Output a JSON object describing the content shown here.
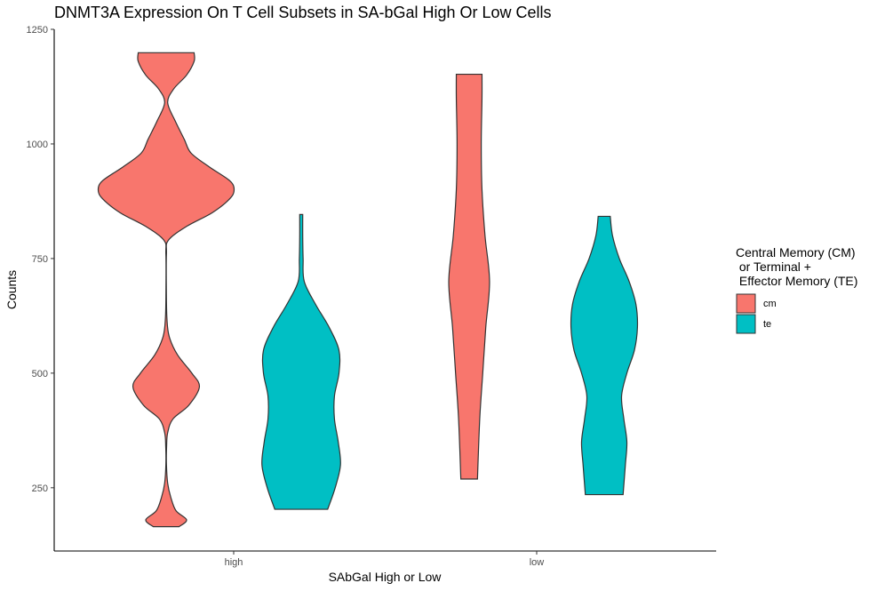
{
  "chart_data": {
    "type": "violin",
    "title": "DNMT3A Expression On T Cell Subsets in SA-bGal High Or Low Cells",
    "xlabel": "SAbGal High or Low",
    "ylabel": "Counts",
    "categories": [
      "high",
      "low"
    ],
    "ylim": [
      112,
      1250
    ],
    "yticks": [
      250,
      500,
      750,
      1000,
      1250
    ],
    "grid": false,
    "legend": {
      "title_lines": [
        "Central Memory (CM)",
        " or Terminal +",
        " Effector Memory (TE)"
      ],
      "placement": "right",
      "entries": [
        {
          "key": "cm",
          "label": "cm",
          "color": "#F8766D"
        },
        {
          "key": "te",
          "label": "te",
          "color": "#00BFC4"
        }
      ]
    },
    "series": [
      {
        "group": "cm",
        "category": "high",
        "color": "#F8766D",
        "profile": [
          [
            165,
            0.17
          ],
          [
            180,
            0.27
          ],
          [
            200,
            0.13
          ],
          [
            230,
            0.06
          ],
          [
            260,
            0.02
          ],
          [
            300,
            0.004
          ],
          [
            340,
            0.006
          ],
          [
            370,
            0.02
          ],
          [
            400,
            0.09
          ],
          [
            430,
            0.3
          ],
          [
            470,
            0.44
          ],
          [
            500,
            0.34
          ],
          [
            540,
            0.15
          ],
          [
            580,
            0.04
          ],
          [
            620,
            0.01
          ],
          [
            680,
            0.003
          ],
          [
            760,
            0.004
          ],
          [
            790,
            0.03
          ],
          [
            820,
            0.27
          ],
          [
            850,
            0.61
          ],
          [
            880,
            0.84
          ],
          [
            900,
            0.9
          ],
          [
            920,
            0.84
          ],
          [
            950,
            0.57
          ],
          [
            980,
            0.33
          ],
          [
            1010,
            0.24
          ],
          [
            1050,
            0.12
          ],
          [
            1090,
            0.02
          ],
          [
            1120,
            0.1
          ],
          [
            1150,
            0.27
          ],
          [
            1180,
            0.37
          ],
          [
            1199,
            0.37
          ]
        ]
      },
      {
        "group": "te",
        "category": "high",
        "color": "#00BFC4",
        "profile": [
          [
            203,
            0.35
          ],
          [
            250,
            0.45
          ],
          [
            300,
            0.52
          ],
          [
            350,
            0.49
          ],
          [
            400,
            0.44
          ],
          [
            450,
            0.44
          ],
          [
            500,
            0.5
          ],
          [
            550,
            0.5
          ],
          [
            600,
            0.37
          ],
          [
            650,
            0.19
          ],
          [
            700,
            0.04
          ],
          [
            750,
            0.025
          ],
          [
            800,
            0.02
          ],
          [
            846,
            0.02
          ]
        ]
      },
      {
        "group": "cm",
        "category": "low",
        "color": "#F8766D",
        "profile": [
          [
            269,
            0.11
          ],
          [
            400,
            0.14
          ],
          [
            500,
            0.18
          ],
          [
            600,
            0.22
          ],
          [
            700,
            0.27
          ],
          [
            800,
            0.21
          ],
          [
            900,
            0.17
          ],
          [
            1000,
            0.16
          ],
          [
            1100,
            0.17
          ],
          [
            1152,
            0.17
          ]
        ]
      },
      {
        "group": "te",
        "category": "low",
        "color": "#00BFC4",
        "profile": [
          [
            235,
            0.25
          ],
          [
            300,
            0.28
          ],
          [
            350,
            0.3
          ],
          [
            400,
            0.26
          ],
          [
            450,
            0.23
          ],
          [
            500,
            0.3
          ],
          [
            550,
            0.4
          ],
          [
            600,
            0.44
          ],
          [
            650,
            0.42
          ],
          [
            700,
            0.33
          ],
          [
            750,
            0.2
          ],
          [
            800,
            0.11
          ],
          [
            842,
            0.08
          ]
        ]
      }
    ]
  }
}
